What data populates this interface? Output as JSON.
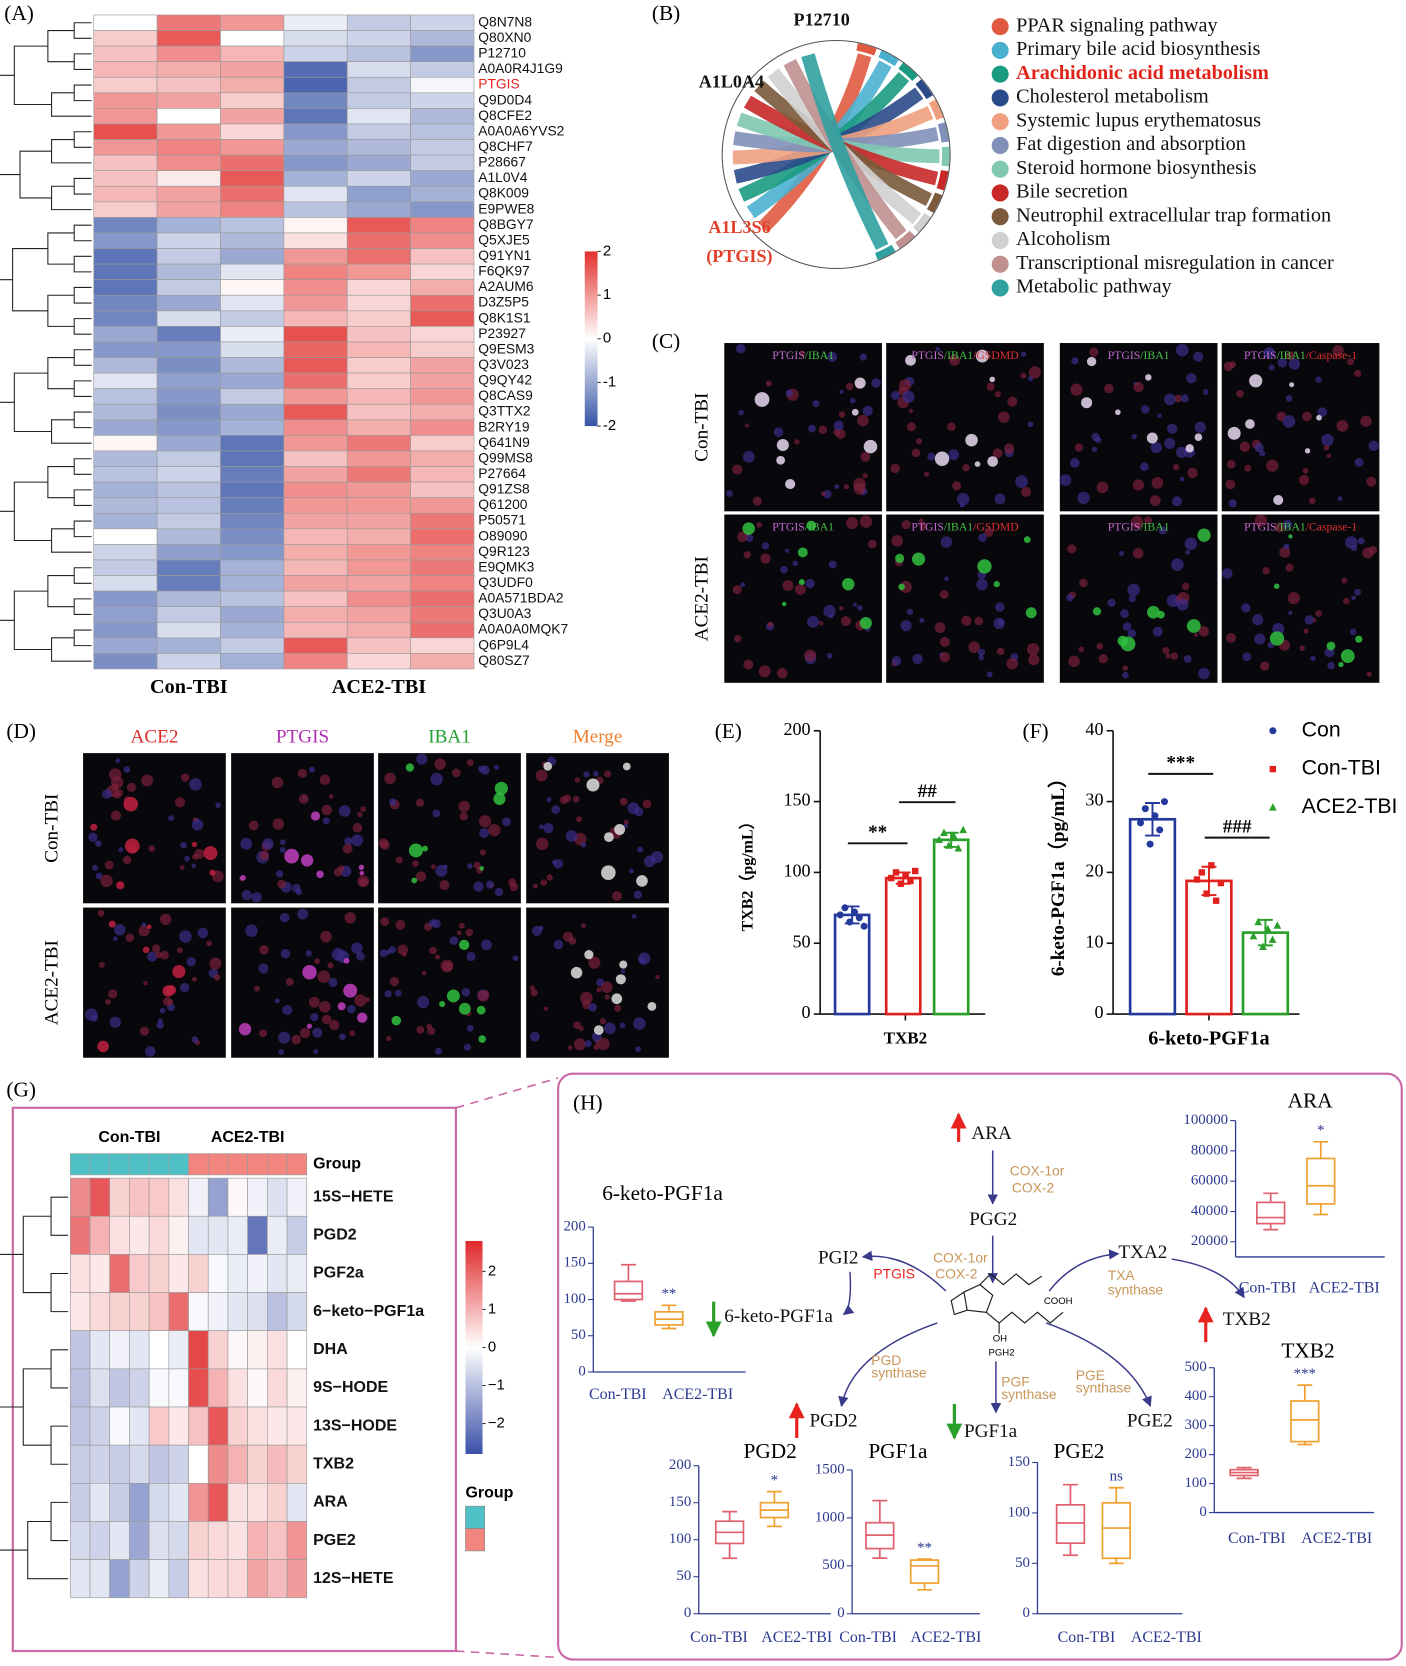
{
  "panel_labels": [
    "(A)",
    "(B)",
    "(C)",
    "(D)",
    "(E)",
    "(F)",
    "(G)",
    "(H)"
  ],
  "heatmap_a": {
    "type": "heatmap",
    "rows": [
      "Q8N7N8",
      "Q80XN0",
      "P12710",
      "A0A0R4J1G9",
      "PTGIS",
      "Q9D0D4",
      "Q8CFE2",
      "A0A0A6YVS2",
      "Q8CHF7",
      "P28667",
      "A1L0V4",
      "Q8K009",
      "E9PWE8",
      "Q8BGY7",
      "Q5XJE5",
      "Q91YN1",
      "F6QK97",
      "A2AUM6",
      "D3Z5P5",
      "Q8K1S1",
      "P23927",
      "Q9ESM3",
      "Q3V023",
      "Q9QY42",
      "Q8CAS9",
      "Q3TTX2",
      "B2RY19",
      "Q641N9",
      "Q99MS8",
      "P27664",
      "Q91ZS8",
      "Q61200",
      "P50571",
      "O89090",
      "Q9R123",
      "E9QMK3",
      "Q3UDF0",
      "A0A571BDA2",
      "Q3U0A3",
      "A0A0A0MQK7",
      "Q6P9L4",
      "Q80SZ7"
    ],
    "highlight_rows": [
      4
    ],
    "highlight_color": "#e8231f",
    "groups": [
      "Con-TBI",
      "ACE2-TBI"
    ],
    "values": [
      [
        0.0,
        1.3,
        1.0,
        -0.2,
        -0.6,
        -0.5
      ],
      [
        0.5,
        1.6,
        0.0,
        -0.4,
        -0.5,
        -0.8
      ],
      [
        0.6,
        1.1,
        0.7,
        -0.5,
        -0.7,
        -1.2
      ],
      [
        0.7,
        0.8,
        0.9,
        -1.7,
        -0.4,
        -0.6
      ],
      [
        0.5,
        0.6,
        0.8,
        -1.8,
        -0.6,
        -0.1
      ],
      [
        1.0,
        0.9,
        0.5,
        -1.4,
        -0.6,
        -0.5
      ],
      [
        1.0,
        0.0,
        0.9,
        -1.6,
        -0.3,
        -0.8
      ],
      [
        1.7,
        1.0,
        0.4,
        -1.2,
        -0.6,
        -0.7
      ],
      [
        1.0,
        1.2,
        1.0,
        -1.0,
        -0.8,
        -0.6
      ],
      [
        0.6,
        1.1,
        1.4,
        -1.2,
        -1.0,
        -0.6
      ],
      [
        0.6,
        0.2,
        1.6,
        -0.9,
        -0.5,
        -1.0
      ],
      [
        0.7,
        0.9,
        1.4,
        -0.3,
        -1.1,
        -0.9
      ],
      [
        0.5,
        0.9,
        1.2,
        -0.7,
        -1.0,
        -1.2
      ],
      [
        -1.4,
        -0.9,
        -0.7,
        0.1,
        1.6,
        1.2
      ],
      [
        -1.2,
        -0.5,
        -0.8,
        0.3,
        1.4,
        1.1
      ],
      [
        -1.6,
        -0.6,
        -1.0,
        1.0,
        1.4,
        0.6
      ],
      [
        -1.6,
        -0.8,
        -0.3,
        1.2,
        1.0,
        0.4
      ],
      [
        -1.6,
        -0.6,
        0.1,
        1.1,
        0.4,
        0.8
      ],
      [
        -1.4,
        -1.0,
        -0.3,
        1.0,
        0.4,
        1.4
      ],
      [
        -1.4,
        -0.4,
        -0.6,
        0.7,
        0.5,
        1.6
      ],
      [
        -1.0,
        -1.5,
        -0.2,
        1.7,
        0.6,
        0.4
      ],
      [
        -1.2,
        -1.2,
        -0.4,
        1.5,
        0.7,
        0.5
      ],
      [
        -0.8,
        -1.3,
        -0.8,
        1.6,
        0.5,
        0.9
      ],
      [
        -0.3,
        -1.1,
        -1.0,
        1.4,
        0.5,
        0.9
      ],
      [
        -0.7,
        -1.2,
        -0.6,
        1.0,
        0.7,
        1.0
      ],
      [
        -0.8,
        -1.3,
        -1.0,
        1.6,
        0.6,
        0.8
      ],
      [
        -1.0,
        -1.2,
        -0.9,
        1.1,
        0.8,
        1.1
      ],
      [
        0.1,
        -1.0,
        -1.6,
        1.0,
        1.3,
        0.5
      ],
      [
        -0.8,
        -0.6,
        -1.6,
        0.6,
        1.0,
        0.8
      ],
      [
        -0.7,
        -0.5,
        -1.5,
        0.9,
        1.3,
        0.7
      ],
      [
        -0.9,
        -0.7,
        -1.6,
        1.1,
        1.0,
        0.6
      ],
      [
        -0.8,
        -0.7,
        -1.5,
        1.0,
        1.0,
        1.0
      ],
      [
        -0.9,
        -0.6,
        -1.4,
        0.9,
        0.9,
        1.3
      ],
      [
        0.0,
        -0.8,
        -1.3,
        0.7,
        0.8,
        1.4
      ],
      [
        -0.5,
        -1.1,
        -1.2,
        0.8,
        1.0,
        1.2
      ],
      [
        -0.6,
        -1.5,
        -0.9,
        0.7,
        1.0,
        1.3
      ],
      [
        -0.4,
        -1.5,
        -0.9,
        0.9,
        0.9,
        1.2
      ],
      [
        -1.2,
        -0.8,
        -0.7,
        0.6,
        1.1,
        1.4
      ],
      [
        -1.1,
        -0.6,
        -1.0,
        0.8,
        0.9,
        1.3
      ],
      [
        -1.2,
        -0.4,
        -0.9,
        0.7,
        0.8,
        1.4
      ],
      [
        -1.0,
        -0.9,
        -0.6,
        1.6,
        0.6,
        0.4
      ],
      [
        -1.3,
        -0.5,
        -0.9,
        1.2,
        0.4,
        0.8
      ]
    ],
    "clim": [
      -2,
      2
    ],
    "cticks": [
      2,
      1,
      0,
      -1,
      -2
    ],
    "colors": [
      "#3653a5",
      "#ffffff",
      "#e2312d"
    ]
  },
  "chord_b": {
    "type": "chord",
    "genes": [
      "P12710",
      "A1L0A4",
      "A1L3S6"
    ],
    "gene_note": "(PTGIS)",
    "gene_colors": [
      "#111111",
      "#111111",
      "#e2402a"
    ],
    "pathways": [
      {
        "name": "PPAR signaling pathway",
        "color": "#e05a40"
      },
      {
        "name": "Primary bile acid biosynthesis",
        "color": "#4ab0d0"
      },
      {
        "name": "Arachidonic acid metabolism",
        "color": "#1a9a80"
      },
      {
        "name": "Cholesterol metabolism",
        "color": "#2a4a8a"
      },
      {
        "name": "Systemic lupus erythematosus",
        "color": "#f0a080"
      },
      {
        "name": "Fat digestion and absorption",
        "color": "#8090b8"
      },
      {
        "name": "Steroid hormone biosynthesis",
        "color": "#80c8b0"
      },
      {
        "name": "Bile secretion",
        "color": "#c82828"
      },
      {
        "name": "Neutrophil extracellular trap formation",
        "color": "#7a5a3a"
      },
      {
        "name": "Alcoholism",
        "color": "#d0d0d0"
      },
      {
        "name": "Transcriptional misregulation in cancer",
        "color": "#c09090"
      },
      {
        "name": "Metabolic pathway",
        "color": "#30a0a0"
      }
    ],
    "highlight_pathways": [
      2
    ],
    "highlight_color": "#e2231a"
  },
  "images_c": {
    "row_labels": [
      "Con-TBI",
      "ACE2-TBI"
    ],
    "channel_labels": [
      [
        {
          "text": "PTGIS",
          "color": "#c36bd0"
        },
        {
          "text": "/IBA1",
          "color": "#45c045"
        }
      ],
      [
        {
          "text": "PTGIS",
          "color": "#c36bd0"
        },
        {
          "text": "/IBA1",
          "color": "#45c045"
        },
        {
          "text": "/GSDMD",
          "color": "#e03030"
        }
      ],
      [
        {
          "text": "PTGIS",
          "color": "#c36bd0"
        },
        {
          "text": "/IBA1",
          "color": "#45c045"
        }
      ],
      [
        {
          "text": "PTGIS",
          "color": "#c36bd0"
        },
        {
          "text": "/IBA1",
          "color": "#45c045"
        },
        {
          "text": "/Caspase-1",
          "color": "#e03030"
        }
      ]
    ]
  },
  "images_d": {
    "row_labels": [
      "Con-TBI",
      "ACE2-TBI"
    ],
    "col_labels": [
      {
        "text": "ACE2",
        "color": "#e02a2a"
      },
      {
        "text": "PTGIS",
        "color": "#b030b0"
      },
      {
        "text": "IBA1",
        "color": "#20a030"
      },
      {
        "text": "Merge",
        "color": "#f08030"
      }
    ]
  },
  "bar_e": {
    "type": "bar",
    "categories": [
      "TXB2"
    ],
    "ylabel": "TXB2（pg/mL）",
    "ylim": [
      0,
      200
    ],
    "yticks": [
      0,
      50,
      100,
      150,
      200
    ],
    "series": [
      {
        "name": "Con",
        "color": "#24399c",
        "marker": "circle",
        "values": [
          70
        ],
        "errors": [
          6
        ],
        "points": [
          [
            70,
            75,
            65,
            72,
            68,
            62
          ]
        ]
      },
      {
        "name": "Con-TBI",
        "color": "#e0201c",
        "marker": "square",
        "values": [
          96
        ],
        "errors": [
          4
        ],
        "points": [
          [
            96,
            100,
            92,
            98,
            94,
            101
          ]
        ]
      },
      {
        "name": "ACE2-TBI",
        "color": "#2aa02a",
        "marker": "triangle",
        "values": [
          123
        ],
        "errors": [
          5
        ],
        "points": [
          [
            123,
            128,
            119,
            126,
            117,
            130
          ]
        ]
      }
    ],
    "annotations": [
      {
        "text": "**",
        "between": [
          0,
          1
        ]
      },
      {
        "text": "##",
        "between": [
          1,
          2
        ]
      }
    ],
    "legend": false
  },
  "bar_f": {
    "type": "bar",
    "categories": [
      "6-keto-PGF1a"
    ],
    "ylabel": "6-keto-PGF1a（pg/mL）",
    "ylim": [
      0,
      40
    ],
    "yticks": [
      0,
      10,
      20,
      30,
      40
    ],
    "series": [
      {
        "name": "Con",
        "color": "#24399c",
        "marker": "circle",
        "values": [
          27.5
        ],
        "errors": [
          2.3
        ],
        "points": [
          [
            27,
            29,
            24,
            28,
            26,
            30
          ]
        ]
      },
      {
        "name": "Con-TBI",
        "color": "#e0201c",
        "marker": "square",
        "values": [
          18.8
        ],
        "errors": [
          2.0
        ],
        "points": [
          [
            19,
            20,
            17,
            21,
            16,
            18.5
          ]
        ]
      },
      {
        "name": "ACE2-TBI",
        "color": "#2aa02a",
        "marker": "triangle",
        "values": [
          11.5
        ],
        "errors": [
          1.8
        ],
        "points": [
          [
            11,
            13,
            9.5,
            12,
            10.5,
            12.5
          ]
        ]
      }
    ],
    "annotations": [
      {
        "text": "***",
        "between": [
          0,
          1
        ]
      },
      {
        "text": "###",
        "between": [
          1,
          2
        ]
      }
    ],
    "legend": true
  },
  "heatmap_g": {
    "type": "heatmap",
    "rows": [
      "15S−HETE",
      "PGD2",
      "PGF2a",
      "6−keto−PGF1a",
      "DHA",
      "9S−HODE",
      "13S−HODE",
      "TXB2",
      "ARA",
      "PGE2",
      "12S−HETE"
    ],
    "groups": [
      "Con-TBI",
      "ACE2-TBI"
    ],
    "group_row_label": "Group",
    "group_colors": [
      "#4fc1c6",
      "#f2867e"
    ],
    "legend_title": "Group",
    "values": [
      [
        1.5,
        2.2,
        0.6,
        0.8,
        0.7,
        0.4,
        -0.2,
        -1.5,
        0.1,
        -0.2,
        -0.5,
        -0.2
      ],
      [
        1.8,
        1.0,
        0.4,
        0.3,
        0.5,
        0.2,
        -0.4,
        -0.4,
        -0.3,
        -2.2,
        -0.3,
        -0.8
      ],
      [
        0.4,
        0.3,
        1.9,
        0.7,
        0.6,
        0.3,
        0.6,
        -0.1,
        -0.3,
        -0.2,
        -0.4,
        -0.3
      ],
      [
        0.3,
        0.5,
        0.6,
        0.6,
        0.8,
        1.9,
        -0.1,
        -0.2,
        -0.4,
        -0.5,
        -1.0,
        -0.6
      ],
      [
        -0.9,
        -0.4,
        -0.2,
        -0.4,
        0.0,
        -0.3,
        2.4,
        0.6,
        0.1,
        0.2,
        0.4,
        0.0
      ],
      [
        -1.0,
        -0.5,
        -0.9,
        -0.7,
        -0.1,
        -0.1,
        2.3,
        1.0,
        0.4,
        0.1,
        0.5,
        0.2
      ],
      [
        -0.9,
        -0.7,
        -0.1,
        -0.4,
        0.7,
        0.3,
        0.8,
        2.2,
        0.6,
        0.4,
        0.3,
        0.3
      ],
      [
        -0.8,
        -0.7,
        -0.8,
        -0.6,
        -0.9,
        -0.7,
        0.0,
        1.5,
        1.0,
        0.6,
        0.9,
        0.6
      ],
      [
        -0.8,
        -0.4,
        -0.8,
        -1.5,
        -0.6,
        -0.4,
        1.4,
        2.2,
        0.4,
        0.4,
        0.6,
        -0.4
      ],
      [
        -0.6,
        -0.7,
        -0.4,
        -1.4,
        -0.5,
        -0.6,
        0.6,
        0.5,
        0.4,
        1.0,
        0.8,
        1.4
      ],
      [
        -0.4,
        -0.4,
        -1.5,
        -0.7,
        -0.3,
        -0.8,
        0.4,
        0.5,
        0.5,
        1.2,
        0.9,
        1.3
      ]
    ],
    "clim": [
      -2.8,
      2.8
    ],
    "cticks": [
      2,
      1,
      0,
      {
        "value": -1,
        "label": "−1"
      },
      {
        "value": -2,
        "label": "−2"
      }
    ],
    "colors": [
      "#3a4fa8",
      "#ffffff",
      "#e0282a"
    ]
  },
  "pathway_h": {
    "nodes": {
      "ara": "ARA",
      "pgg2": "PGG2",
      "pgi2": "PGI2",
      "txa2": "TXA2",
      "keto": "6-keto-PGF1a",
      "txb2": "TXB2",
      "pgd2": "PGD2",
      "pgf1a": "PGF1a",
      "pge2": "PGE2",
      "pgh2": "PGH2",
      "cooh": "COOH",
      "oh": "OH"
    },
    "enzymes": {
      "cox_a": [
        "COX-1or",
        "COX-2"
      ],
      "cox_b": [
        "COX-1or",
        "COX-2"
      ],
      "ptgis": "PTGIS",
      "txa": [
        "TXA",
        "synthase"
      ],
      "pgd": [
        "PGD",
        "synthase"
      ],
      "pgf": [
        "PGF",
        "synthase"
      ],
      "pge": [
        "PGE",
        "synthase"
      ]
    }
  },
  "boxplots_h": [
    {
      "type": "box",
      "title": "ARA",
      "categories": [
        "Con-TBI",
        "ACE2-TBI"
      ],
      "colors": [
        "#e0606e",
        "#f0a030"
      ],
      "boxes": [
        [
          28000,
          32000,
          36000,
          46000,
          52000
        ],
        [
          38000,
          45000,
          57000,
          75000,
          86000
        ]
      ],
      "ylim": [
        10000,
        100000
      ],
      "yticks": [
        20000,
        40000,
        60000,
        80000,
        100000
      ],
      "significance": "*"
    },
    {
      "type": "box",
      "title": "6-keto-PGF1a",
      "categories": [
        "Con-TBI",
        "ACE2-TBI"
      ],
      "colors": [
        "#e0606e",
        "#f0a030"
      ],
      "boxes": [
        [
          98,
          100,
          108,
          125,
          148
        ],
        [
          60,
          65,
          73,
          83,
          92
        ]
      ],
      "ylim": [
        0,
        200
      ],
      "yticks": [
        0,
        50,
        100,
        150,
        200
      ],
      "significance": "**"
    },
    {
      "type": "box",
      "title": "TXB2",
      "categories": [
        "Con-TBI",
        "ACE2-TBI"
      ],
      "colors": [
        "#e0606e",
        "#f0a030"
      ],
      "boxes": [
        [
          118,
          128,
          138,
          148,
          155
        ],
        [
          235,
          245,
          320,
          385,
          440
        ]
      ],
      "ylim": [
        0,
        500
      ],
      "yticks": [
        0,
        100,
        200,
        300,
        400,
        500
      ],
      "significance": "***"
    },
    {
      "type": "box",
      "title": "PGD2",
      "categories": [
        "Con-TBI",
        "ACE2-TBI"
      ],
      "colors": [
        "#e0606e",
        "#f0a030"
      ],
      "boxes": [
        [
          75,
          95,
          110,
          125,
          138
        ],
        [
          118,
          130,
          140,
          150,
          165
        ]
      ],
      "ylim": [
        0,
        200
      ],
      "yticks": [
        0,
        50,
        100,
        150,
        200
      ],
      "significance": "*"
    },
    {
      "type": "box",
      "title": "PGF1a",
      "categories": [
        "Con-TBI",
        "ACE2-TBI"
      ],
      "colors": [
        "#e0606e",
        "#f0a030"
      ],
      "boxes": [
        [
          580,
          680,
          820,
          950,
          1180
        ],
        [
          250,
          320,
          500,
          560,
          570
        ]
      ],
      "ylim": [
        0,
        1500
      ],
      "yticks": [
        0,
        500,
        1000,
        1500
      ],
      "significance": "**"
    },
    {
      "type": "box",
      "title": "PGE2",
      "categories": [
        "Con-TBI",
        "ACE2-TBI"
      ],
      "colors": [
        "#e0606e",
        "#f0a030"
      ],
      "boxes": [
        [
          58,
          70,
          90,
          108,
          128
        ],
        [
          50,
          55,
          85,
          110,
          125
        ]
      ],
      "ylim": [
        0,
        150
      ],
      "yticks": [
        0,
        50,
        100,
        150
      ],
      "significance": "ns"
    }
  ]
}
